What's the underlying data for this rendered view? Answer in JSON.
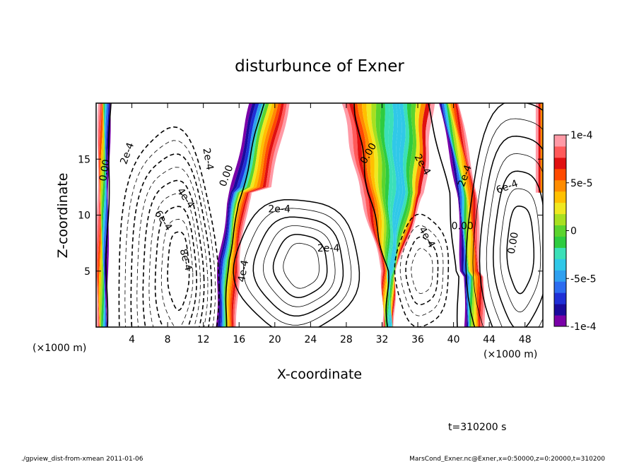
{
  "chart_data": {
    "type": "heatmap",
    "title": "disturbunce of Exner",
    "xlabel": "X-coordinate",
    "ylabel": "Z-coordinate",
    "x_unit": "(×1000 m)",
    "y_unit": "(×1000 m)",
    "xlim": [
      0,
      50
    ],
    "ylim": [
      0,
      20
    ],
    "x_ticks": [
      "4",
      "8",
      "12",
      "16",
      "20",
      "24",
      "28",
      "32",
      "36",
      "40",
      "44",
      "48"
    ],
    "x_tick_values": [
      4,
      8,
      12,
      16,
      20,
      24,
      28,
      32,
      36,
      40,
      44,
      48
    ],
    "y_ticks": [
      "5",
      "10",
      "15"
    ],
    "y_tick_values": [
      5,
      10,
      15
    ],
    "colorbar": {
      "range": [
        -0.0001,
        0.0001
      ],
      "labels": [
        "1e-4",
        "5e-5",
        "0",
        "-5e-5",
        "-1e-4"
      ],
      "label_values": [
        0.0001,
        5e-05,
        0,
        -5e-05,
        -0.0001
      ],
      "colors": [
        "#7a00a8",
        "#1a0a9c",
        "#1f2fd6",
        "#2c6cf0",
        "#2fa0f0",
        "#30c8e8",
        "#3be0b8",
        "#2ecc40",
        "#5bd42e",
        "#a8e020",
        "#f0e820",
        "#ffc000",
        "#ff8c00",
        "#ff4a00",
        "#e01010",
        "#ff5a5a",
        "#ff9aa6"
      ]
    },
    "contour_labels": [
      "0.00",
      "2e-4",
      "2e-4",
      "4e-4",
      "6e-4",
      "8e-4",
      "2e-4",
      "4e-4",
      "0.00",
      "0.00",
      "2e-4",
      "2e-4",
      "4e-4",
      "6e-4",
      "0.00",
      "0.00",
      "2e-4"
    ],
    "time_label": "t=310200 s"
  },
  "footer": {
    "left": "./gpview_dist-from-xmean  2011-01-06",
    "right": "MarsCond_Exner.nc@Exner,x=0:50000,z=0:20000,t=310200"
  }
}
